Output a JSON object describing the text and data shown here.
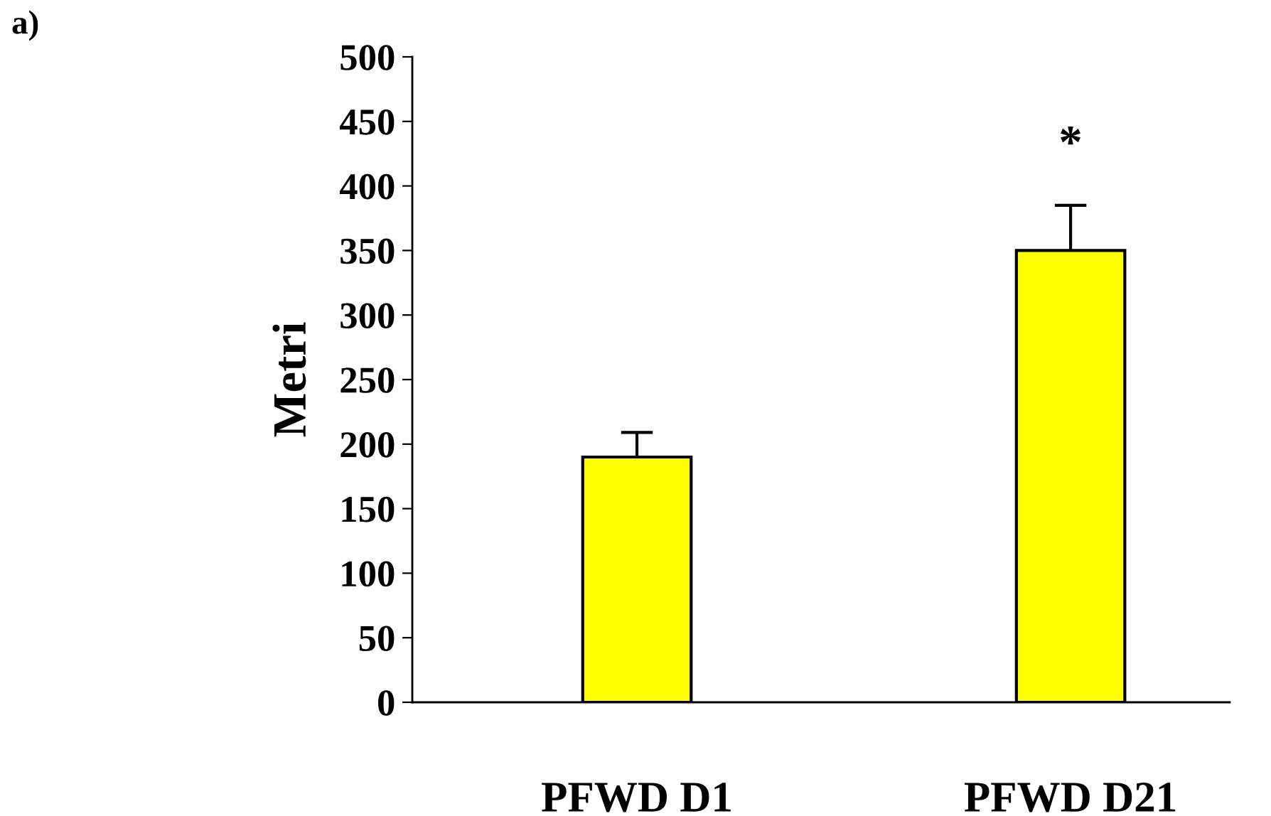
{
  "chart_data": {
    "type": "bar",
    "ylabel": "Metri",
    "categories": [
      "PFWD D1",
      "PFWD D21"
    ],
    "values": [
      190,
      350
    ],
    "errors": [
      19,
      35
    ],
    "color": "#ffff00",
    "ylim": [
      0,
      500
    ],
    "yticks": [
      0,
      50,
      100,
      150,
      200,
      250,
      300,
      350,
      400,
      450,
      500
    ],
    "grid": false,
    "legend": false,
    "annotations": [
      "a)",
      "*"
    ]
  }
}
